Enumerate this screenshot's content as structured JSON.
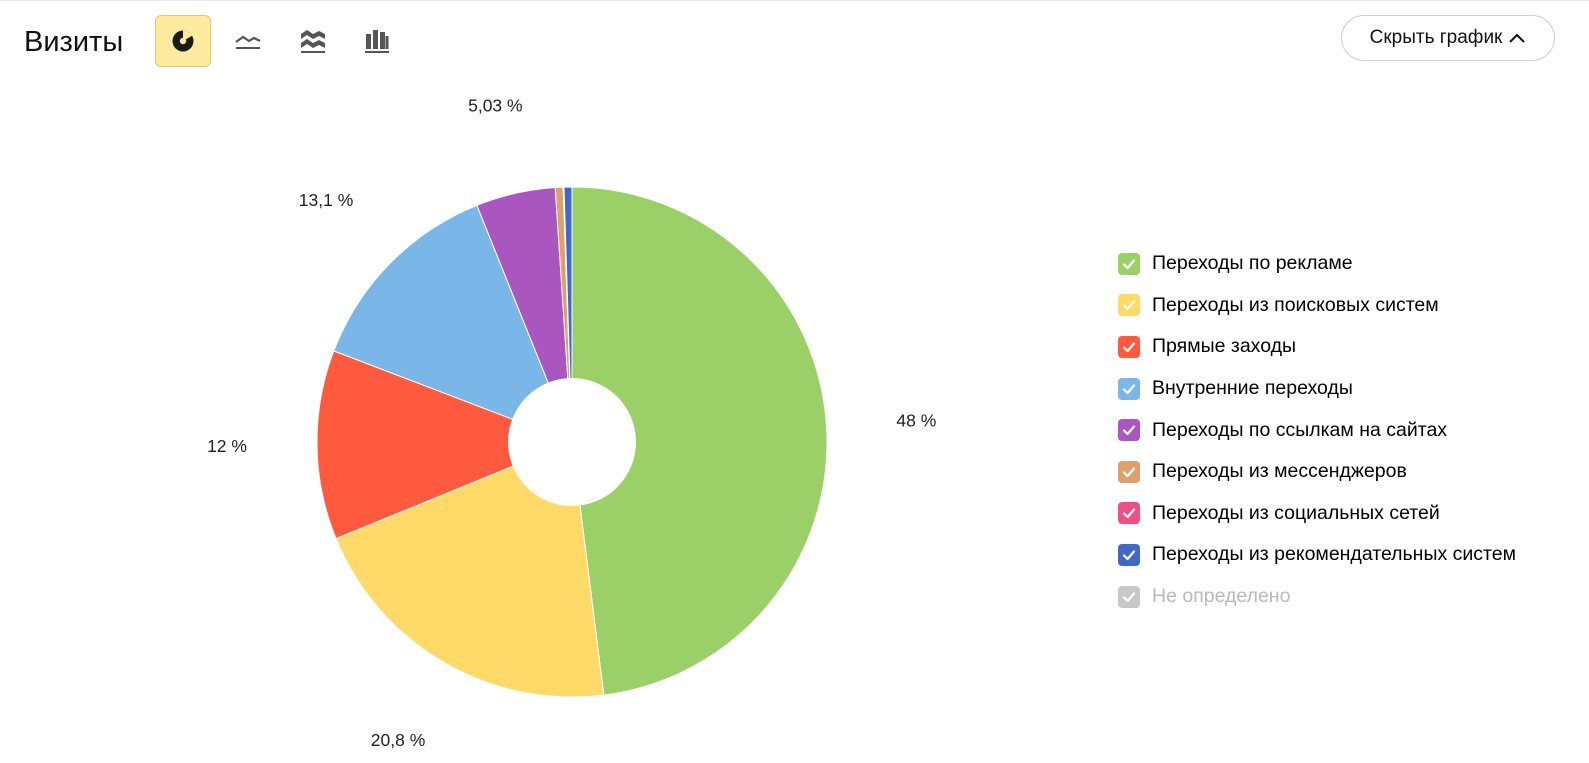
{
  "header": {
    "title": "Визиты",
    "hide_chart_label": "Скрыть график"
  },
  "toolbar": {
    "views": [
      {
        "name": "pie-chart-icon",
        "active": true
      },
      {
        "name": "line-chart-icon",
        "active": false
      },
      {
        "name": "area-chart-icon",
        "active": false
      },
      {
        "name": "bar-chart-icon",
        "active": false
      }
    ]
  },
  "chart_data": {
    "type": "pie",
    "donut": true,
    "legend_position": "right",
    "slices": [
      {
        "label": "Переходы по рекламе",
        "value": 48,
        "display": "48 %",
        "color": "#9bcf68",
        "enabled": true
      },
      {
        "label": "Переходы из поисковых систем",
        "value": 20.8,
        "display": "20,8 %",
        "color": "#ffda68",
        "enabled": true
      },
      {
        "label": "Прямые заходы",
        "value": 12,
        "display": "12 %",
        "color": "#ff5a3e",
        "enabled": true
      },
      {
        "label": "Внутренние переходы",
        "value": 13.1,
        "display": "13,1 %",
        "color": "#7ab6e8",
        "enabled": true
      },
      {
        "label": "Переходы по ссылкам на сайтах",
        "value": 5.03,
        "display": "5,03 %",
        "color": "#a956be",
        "enabled": true
      },
      {
        "label": "Переходы из мессенджеров",
        "value": 0.5,
        "display": "",
        "color": "#dea06c",
        "enabled": true
      },
      {
        "label": "Переходы из социальных сетей",
        "value": 0.05,
        "display": "",
        "color": "#ec5185",
        "enabled": true
      },
      {
        "label": "Переходы из рекомендательных систем",
        "value": 0.5,
        "display": "",
        "color": "#4169c2",
        "enabled": true
      },
      {
        "label": "Не определено",
        "value": 0,
        "display": "",
        "color": "#c8c8c8",
        "enabled": false
      }
    ]
  }
}
